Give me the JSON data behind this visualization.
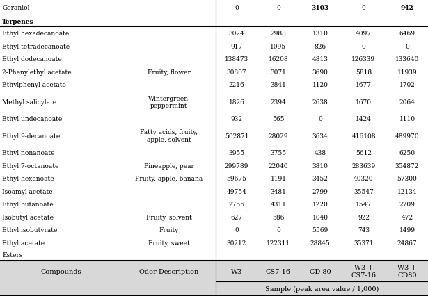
{
  "header_group": "Sample (peak area value / 1,000)",
  "col_headers": [
    "Compounds",
    "Odor Description",
    "W3",
    "CS7-16",
    "CD 80",
    "W3 +\nCS7-16",
    "W3 +\nCD80"
  ],
  "section_esters": "Esters",
  "section_terpenes": "Terpenes",
  "rows": [
    [
      "Ethyl acetate",
      "Fruity, sweet",
      "30212",
      "122311",
      "28845",
      "35371",
      "24867"
    ],
    [
      "Ethyl isobutyrate",
      "Fruity",
      "0",
      "0",
      "5569",
      "743",
      "1499"
    ],
    [
      "Isobutyl acetate",
      "Fruity, solvent",
      "627",
      "586",
      "1040",
      "922",
      "472"
    ],
    [
      "Ethyl butanoate",
      "",
      "2756",
      "4311",
      "1220",
      "1547",
      "2709"
    ],
    [
      "Isoamyl acetate",
      "",
      "49754",
      "3481",
      "2799",
      "35547",
      "12134"
    ],
    [
      "Ethyl hexanoate",
      "Fruity, apple, banana",
      "59675",
      "1191",
      "3452",
      "40320",
      "57300"
    ],
    [
      "Ethyl 7-octanoate",
      "Pineapple, pear",
      "299789",
      "22040",
      "3810",
      "283639",
      "354872"
    ],
    [
      "Ethyl nonanoate",
      "",
      "3955",
      "3755",
      "438",
      "5612",
      "6250"
    ],
    [
      "Ethyl 9-decanoate",
      "Fatty acids, fruity,\napple, solvent",
      "502871",
      "28029",
      "3634",
      "416108",
      "489970"
    ],
    [
      "Ethyl undecanoate",
      "",
      "932",
      "565",
      "0",
      "1424",
      "1110"
    ],
    [
      "Methyl salicylate",
      "Wintergreen\npeppermint",
      "1826",
      "2394",
      "2638",
      "1670",
      "2064"
    ],
    [
      "Ethylphenyl acetate",
      "",
      "2216",
      "3841",
      "1120",
      "1677",
      "1702"
    ],
    [
      "2-Phenylethyl acetate",
      "Fruity, flower",
      "30807",
      "3071",
      "3690",
      "5818",
      "11939"
    ],
    [
      "Ethyl dodecanoate",
      "",
      "138473",
      "16208",
      "4813",
      "126339",
      "133640"
    ],
    [
      "Ethyl tetradecanoate",
      "",
      "917",
      "1095",
      "826",
      "0",
      "0"
    ],
    [
      "Ethyl hexadecanoate",
      "",
      "3024",
      "2988",
      "1310",
      "4097",
      "6469"
    ]
  ],
  "terpene_rows": [
    [
      "Geraniol",
      "",
      "0",
      "0",
      "3103",
      "0",
      "942"
    ]
  ],
  "bg_color": "#ffffff",
  "header_bg": "#d8d8d8",
  "font_size": 6.5,
  "header_font_size": 7.0
}
